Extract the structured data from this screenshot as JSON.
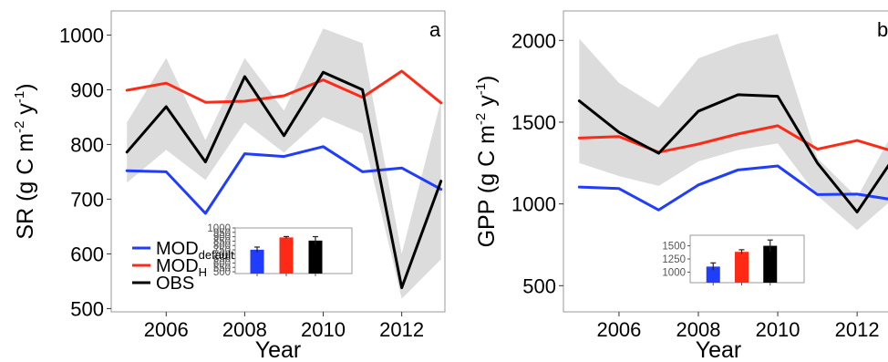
{
  "colors": {
    "mod_default": "#1f3cff",
    "mod_h": "#ff2a16",
    "obs": "#000000",
    "band": "#dcdcdc",
    "frame": "#9a9a9a"
  },
  "legend": {
    "mod_default": {
      "base": "MOD",
      "sub": "default"
    },
    "mod_h": {
      "base": "MOD",
      "sub": "H"
    },
    "obs": {
      "base": "OBS",
      "sub": ""
    }
  },
  "chart_data": [
    {
      "type": "line",
      "panel": "a",
      "ylabel": {
        "base": "SR (g C m",
        "sup1": "-2",
        "mid": " y",
        "sup2": "-1",
        "end": ")"
      },
      "xlabel": "Year",
      "xlim": [
        2004.6,
        2013.1
      ],
      "ylim": [
        494,
        1044
      ],
      "xticks": [
        2006,
        2008,
        2010,
        2012
      ],
      "yticks": [
        500,
        600,
        700,
        800,
        900,
        1000
      ],
      "x": [
        2005,
        2006,
        2007,
        2008,
        2009,
        2010,
        2011,
        2012,
        2013
      ],
      "band": {
        "lower": [
          730,
          790,
          735,
          840,
          785,
          850,
          820,
          518,
          590
        ],
        "upper": [
          840,
          958,
          808,
          958,
          862,
          1012,
          985,
          600,
          880
        ]
      },
      "series": [
        {
          "key": "mod_default",
          "values": [
            752,
            750,
            674,
            783,
            778,
            796,
            750,
            757,
            718
          ]
        },
        {
          "key": "mod_h",
          "values": [
            899,
            912,
            877,
            879,
            889,
            918,
            886,
            934,
            876
          ]
        },
        {
          "key": "obs",
          "values": [
            786,
            869,
            768,
            924,
            816,
            932,
            900,
            538,
            733
          ]
        }
      ],
      "inset": {
        "type": "bar",
        "ylim": [
          480,
          1000
        ],
        "yticks": [
          500,
          550,
          600,
          650,
          700,
          750,
          800,
          850,
          900,
          950,
          1000
        ],
        "ytick_labels": [
          "500",
          "550",
          "600",
          "650",
          "700",
          "750",
          "800",
          "850",
          "900",
          "950",
          "1000"
        ],
        "bars": [
          {
            "key": "mod_default",
            "value": 752,
            "err": 30
          },
          {
            "key": "mod_h",
            "value": 892,
            "err": 10
          },
          {
            "key": "obs",
            "value": 856,
            "err": 45
          }
        ]
      }
    },
    {
      "type": "line",
      "panel": "b",
      "ylabel": {
        "base": "GPP (g C m",
        "sup1": "-2",
        "mid": " y",
        "sup2": "-1",
        "end": ")"
      },
      "xlabel": "Year",
      "xlim": [
        2004.6,
        2013.1
      ],
      "ylim": [
        340,
        2180
      ],
      "xticks": [
        2006,
        2008,
        2010,
        2012
      ],
      "yticks": [
        500,
        1000,
        1500,
        2000
      ],
      "x": [
        2005,
        2006,
        2007,
        2008,
        2009,
        2010,
        2011,
        2012,
        2013
      ],
      "band": {
        "lower": [
          1250,
          1170,
          1110,
          1260,
          1330,
          1370,
          1050,
          840,
          1050
        ],
        "upper": [
          2010,
          1740,
          1590,
          1890,
          1980,
          2040,
          1280,
          1040,
          1480
        ]
      },
      "series": [
        {
          "key": "mod_default",
          "values": [
            1103,
            1094,
            963,
            1116,
            1208,
            1232,
            1057,
            1060,
            1022
          ]
        },
        {
          "key": "mod_h",
          "values": [
            1403,
            1412,
            1316,
            1366,
            1428,
            1478,
            1335,
            1388,
            1315
          ]
        },
        {
          "key": "obs",
          "values": [
            1630,
            1438,
            1310,
            1567,
            1668,
            1658,
            1250,
            950,
            1310
          ]
        }
      ],
      "inset": {
        "type": "bar",
        "ylim": [
          800,
          1700
        ],
        "yticks": [
          1000,
          1250,
          1500
        ],
        "ytick_labels": [
          "1000",
          "1250",
          "1500"
        ],
        "bars": [
          {
            "key": "mod_default",
            "value": 1105,
            "err": 70
          },
          {
            "key": "mod_h",
            "value": 1385,
            "err": 40
          },
          {
            "key": "obs",
            "value": 1500,
            "err": 110
          }
        ]
      }
    }
  ]
}
